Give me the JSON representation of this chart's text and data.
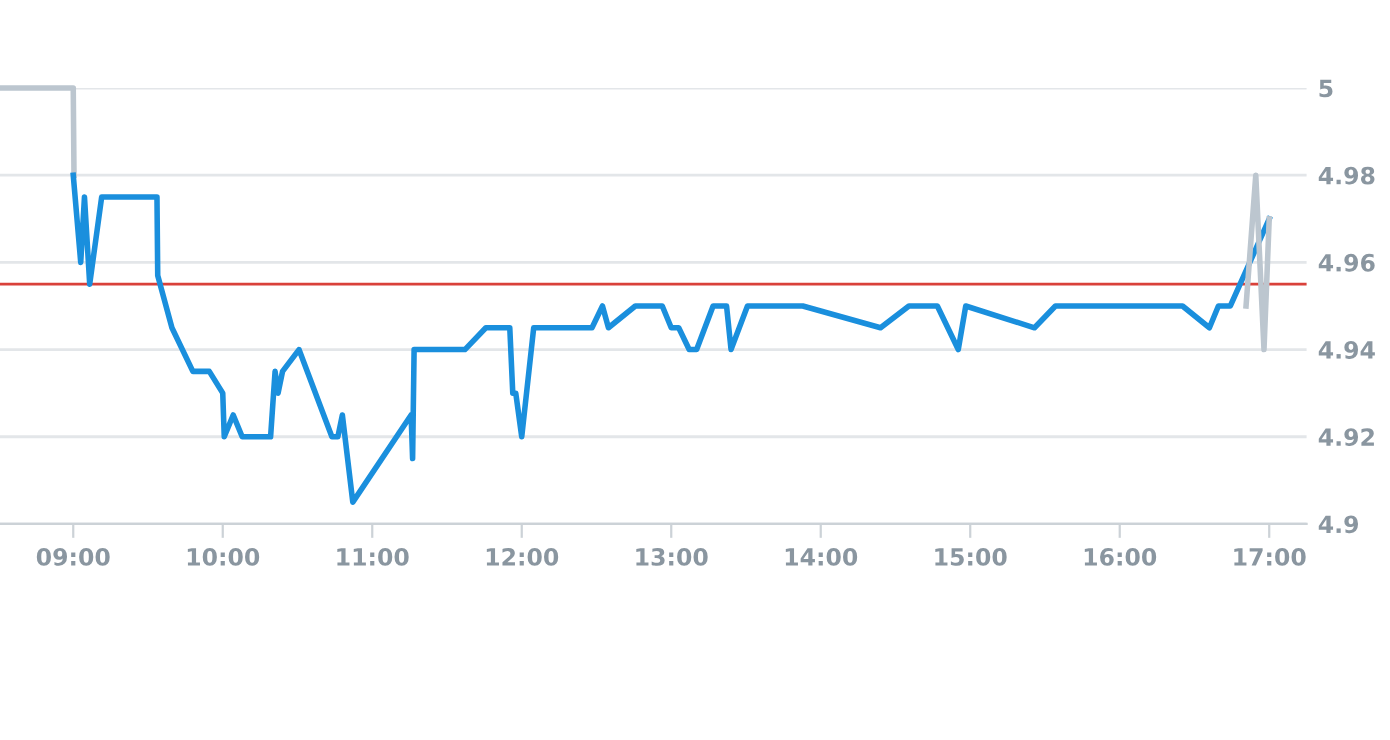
{
  "chart_data": {
    "type": "line",
    "xlim": [
      8.51,
      17.25
    ],
    "ylim": [
      4.9,
      5.0
    ],
    "xticks": [
      {
        "value": 9,
        "label": "09:00"
      },
      {
        "value": 10,
        "label": "10:00"
      },
      {
        "value": 11,
        "label": "11:00"
      },
      {
        "value": 12,
        "label": "12:00"
      },
      {
        "value": 13,
        "label": "13:00"
      },
      {
        "value": 14,
        "label": "14:00"
      },
      {
        "value": 15,
        "label": "15:00"
      },
      {
        "value": 16,
        "label": "16:00"
      },
      {
        "value": 17,
        "label": "17:00"
      }
    ],
    "yticks": [
      4.9,
      4.92,
      4.94,
      4.96,
      4.98,
      5
    ],
    "grid": "y",
    "legend": false,
    "marker": "none",
    "line_style": "solid",
    "ref_lines": [
      {
        "axis": "y",
        "value": 4.955,
        "color": "#d9413a"
      }
    ],
    "series": [
      {
        "color": "#bcc6cf",
        "x": [
          8.51,
          9.0,
          9.005
        ],
        "values": [
          5.0,
          5.0,
          4.98
        ]
      },
      {
        "color": "#1a8fdd",
        "x": [
          9.0,
          9.05,
          9.075,
          9.11,
          9.19,
          9.56,
          9.565,
          9.66,
          9.8,
          9.91,
          10.0,
          10.01,
          10.07,
          10.13,
          10.32,
          10.35,
          10.37,
          10.4,
          10.51,
          10.73,
          10.77,
          10.8,
          10.87,
          11.26,
          11.27,
          11.28,
          11.62,
          11.76,
          11.92,
          11.94,
          11.96,
          12.0,
          12.08,
          12.47,
          12.54,
          12.58,
          12.76,
          12.94,
          13.0,
          13.05,
          13.12,
          13.17,
          13.28,
          13.37,
          13.4,
          13.51,
          13.88,
          14.4,
          14.59,
          14.78,
          14.92,
          14.97,
          15.43,
          15.57,
          16.42,
          16.6,
          16.66,
          16.74,
          17.0
        ],
        "values": [
          4.98,
          4.96,
          4.975,
          4.955,
          4.975,
          4.975,
          4.957,
          4.945,
          4.935,
          4.935,
          4.93,
          4.92,
          4.925,
          4.92,
          4.92,
          4.935,
          4.93,
          4.935,
          4.94,
          4.92,
          4.92,
          4.925,
          4.905,
          4.925,
          4.915,
          4.94,
          4.94,
          4.945,
          4.945,
          4.93,
          4.93,
          4.92,
          4.945,
          4.945,
          4.95,
          4.945,
          4.95,
          4.95,
          4.945,
          4.945,
          4.94,
          4.94,
          4.95,
          4.95,
          4.94,
          4.95,
          4.95,
          4.945,
          4.95,
          4.95,
          4.94,
          4.95,
          4.945,
          4.95,
          4.95,
          4.945,
          4.95,
          4.95,
          4.97
        ]
      },
      {
        "color": "#bcc6cf",
        "x": [
          16.845,
          16.91,
          16.965,
          17.0
        ],
        "values": [
          4.95,
          4.98,
          4.94,
          4.97
        ]
      }
    ]
  }
}
